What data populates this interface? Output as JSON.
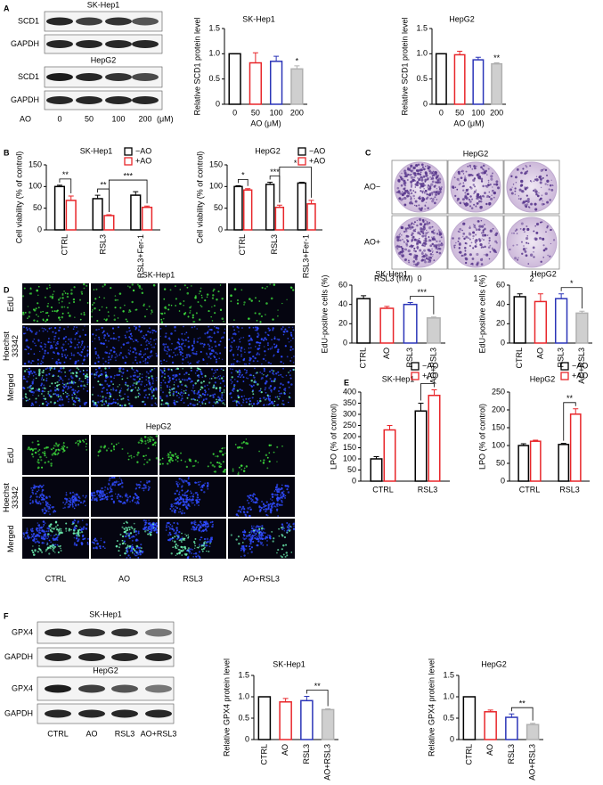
{
  "panel_labels": [
    "A",
    "B",
    "C",
    "D",
    "E",
    "F"
  ],
  "blots_a": {
    "cell_lines": [
      "SK-Hep1",
      "HepG2"
    ],
    "proteins": [
      "SCD1",
      "GAPDH"
    ],
    "lane_title": "AO",
    "lanes": [
      "0",
      "50",
      "100",
      "200"
    ],
    "unit": "(μM)"
  },
  "colony": {
    "title": "HepG2",
    "rows": [
      "AO−",
      "AO+"
    ],
    "lane_title": "RSL3 (nM)",
    "lanes": [
      "0",
      "1",
      "2"
    ]
  },
  "microscopy": {
    "cell_lines": [
      "SK-Hep1",
      "HepG2"
    ],
    "rows": [
      "EdU",
      "Hoechst 33342",
      "Merged"
    ],
    "columns": [
      "CTRL",
      "AO",
      "RSL3",
      "AO+RSL3"
    ]
  },
  "blots_f": {
    "cell_lines": [
      "SK-Hep1",
      "HepG2"
    ],
    "proteins": [
      "GPX4",
      "GAPDH"
    ],
    "lanes": [
      "CTRL",
      "AO",
      "RSL3",
      "AO+RSL3"
    ]
  },
  "chart_data": [
    {
      "type": "bar",
      "title": "SK-Hep1",
      "ylabel": "Relative SCD1 protein level",
      "xlabel": "AO (μM)",
      "categories": [
        "0",
        "50",
        "100",
        "200"
      ],
      "values": [
        1,
        0.82,
        0.85,
        0.7
      ],
      "errors": [
        0,
        0.2,
        0.1,
        0.06
      ],
      "colors": [
        "#000000",
        "#e8262a",
        "#2b35b8",
        "#b0b0b0"
      ],
      "fills": [
        "none",
        "none",
        "none",
        "#cfcfcf"
      ],
      "ylim": [
        0,
        1.5
      ],
      "yticks": [
        0,
        0.5,
        {
          "value": 1,
          "label": "1.0"
        },
        1.5
      ],
      "annotations": [
        {
          "text": "*",
          "between": [
            "200"
          ]
        }
      ]
    },
    {
      "type": "bar",
      "title": "HepG2",
      "ylabel": "Relative SCD1 protein level",
      "xlabel": "AO (μM)",
      "categories": [
        "0",
        "50",
        "100",
        "200"
      ],
      "values": [
        1,
        0.98,
        0.88,
        0.8
      ],
      "errors": [
        0,
        0.07,
        0.05,
        0.02
      ],
      "colors": [
        "#000000",
        "#e8262a",
        "#2b35b8",
        "#b0b0b0"
      ],
      "fills": [
        "none",
        "none",
        "none",
        "#cfcfcf"
      ],
      "ylim": [
        0,
        1.5
      ],
      "yticks": [
        0,
        0.5,
        {
          "value": 1,
          "label": "1.0"
        },
        1.5
      ],
      "annotations": [
        {
          "text": "**",
          "between": [
            "200"
          ]
        }
      ]
    },
    {
      "type": "grouped_bar",
      "title": "SK-Hep1",
      "ylabel": "Cell viability (% of control)",
      "categories": [
        "CTRL",
        "RSL3",
        "RSL3+Fer-1"
      ],
      "series": [
        {
          "name": "−AO",
          "color": "#000000",
          "values": [
            100,
            72,
            80
          ],
          "errors": [
            3,
            8,
            8
          ]
        },
        {
          "name": "+AO",
          "color": "#e8262a",
          "values": [
            68,
            33,
            52
          ],
          "errors": [
            10,
            2,
            3
          ]
        }
      ],
      "ylim": [
        0,
        150
      ],
      "yticks": [
        0,
        50,
        100,
        150
      ],
      "annotations": [
        {
          "text": "**",
          "between": [
            [
              "CTRL",
              "−AO"
            ],
            [
              "CTRL",
              "+AO"
            ]
          ]
        },
        {
          "text": "**",
          "between": [
            [
              "RSL3",
              "−AO"
            ],
            [
              "RSL3",
              "+AO"
            ]
          ]
        },
        {
          "text": "***",
          "between": [
            [
              "RSL3",
              "+AO"
            ],
            [
              "RSL3+Fer-1",
              "+AO"
            ]
          ]
        }
      ]
    },
    {
      "type": "grouped_bar",
      "title": "HepG2",
      "ylabel": "Cell viability (% of control)",
      "categories": [
        "CTRL",
        "RSL3",
        "RSL3+Fer-1"
      ],
      "series": [
        {
          "name": "−AO",
          "color": "#000000",
          "values": [
            100,
            105,
            108
          ],
          "errors": [
            2,
            5,
            2
          ]
        },
        {
          "name": "+AO",
          "color": "#e8262a",
          "values": [
            92,
            52,
            60
          ],
          "errors": [
            3,
            5,
            8
          ]
        }
      ],
      "ylim": [
        0,
        150
      ],
      "yticks": [
        0,
        50,
        100,
        150
      ],
      "annotations": [
        {
          "text": "*",
          "between": [
            [
              "CTRL",
              "−AO"
            ],
            [
              "CTRL",
              "+AO"
            ]
          ]
        },
        {
          "text": "***",
          "between": [
            [
              "RSL3",
              "−AO"
            ],
            [
              "RSL3",
              "+AO"
            ]
          ]
        },
        {
          "text": "*",
          "between": [
            [
              "RSL3",
              "+AO"
            ],
            [
              "RSL3+Fer-1",
              "+AO"
            ]
          ]
        }
      ]
    },
    {
      "type": "bar",
      "title": "SK-Hep1",
      "ylabel": "EdU-positive cells (%)",
      "categories": [
        "CTRL",
        "AO",
        "RSL3",
        "AO+RSL3"
      ],
      "values": [
        46,
        36,
        40,
        26
      ],
      "errors": [
        3,
        2,
        2,
        1
      ],
      "colors": [
        "#000000",
        "#e8262a",
        "#2b35b8",
        "#b0b0b0"
      ],
      "fills": [
        "none",
        "none",
        "none",
        "#cfcfcf"
      ],
      "ylim": [
        0,
        60
      ],
      "yticks": [
        0,
        20,
        40,
        60
      ],
      "annotations": [
        {
          "text": "***",
          "between": [
            "RSL3",
            "AO+RSL3"
          ]
        }
      ]
    },
    {
      "type": "bar",
      "title": "HepG2",
      "ylabel": "EdU-positive cells (%)",
      "categories": [
        "CTRL",
        "AO",
        "RSL3",
        "AO+RSL3"
      ],
      "values": [
        48,
        43,
        46,
        31
      ],
      "errors": [
        3,
        8,
        5,
        2
      ],
      "colors": [
        "#000000",
        "#e8262a",
        "#2b35b8",
        "#b0b0b0"
      ],
      "fills": [
        "none",
        "none",
        "none",
        "#cfcfcf"
      ],
      "ylim": [
        0,
        60
      ],
      "yticks": [
        0,
        20,
        40,
        60
      ],
      "annotations": [
        {
          "text": "*",
          "between": [
            "RSL3",
            "AO+RSL3"
          ]
        }
      ]
    },
    {
      "type": "grouped_bar",
      "title": "SK-Hep1",
      "ylabel": "LPO (% of control)",
      "categories": [
        "CTRL",
        "RSL3"
      ],
      "series": [
        {
          "name": "−AO",
          "color": "#000000",
          "values": [
            100,
            315
          ],
          "errors": [
            10,
            35
          ]
        },
        {
          "name": "+AO",
          "color": "#e8262a",
          "values": [
            230,
            385
          ],
          "errors": [
            20,
            25
          ]
        }
      ],
      "ylim": [
        0,
        400
      ],
      "yticks": [
        0,
        50,
        100,
        150,
        200,
        250,
        300,
        350,
        400
      ],
      "annotations": [
        {
          "text": "*",
          "between": [
            [
              "RSL3",
              "−AO"
            ],
            [
              "RSL3",
              "+AO"
            ]
          ]
        }
      ]
    },
    {
      "type": "grouped_bar",
      "title": "HepG2",
      "ylabel": "LPO (% of control)",
      "categories": [
        "CTRL",
        "RSL3"
      ],
      "series": [
        {
          "name": "−AO",
          "color": "#000000",
          "values": [
            100,
            103
          ],
          "errors": [
            5,
            3
          ]
        },
        {
          "name": "+AO",
          "color": "#e8262a",
          "values": [
            112,
            188
          ],
          "errors": [
            3,
            15
          ]
        }
      ],
      "ylim": [
        0,
        250
      ],
      "yticks": [
        0,
        50,
        100,
        150,
        200,
        250
      ],
      "annotations": [
        {
          "text": "**",
          "between": [
            [
              "RSL3",
              "−AO"
            ],
            [
              "RSL3",
              "+AO"
            ]
          ]
        }
      ]
    },
    {
      "type": "bar",
      "title": "SK-Hep1",
      "ylabel": "Relative GPX4 protein level",
      "categories": [
        "CTRL",
        "AO",
        "RSL3",
        "AO+RSL3"
      ],
      "values": [
        1,
        0.88,
        0.91,
        0.7
      ],
      "errors": [
        0,
        0.08,
        0.1,
        0.02
      ],
      "colors": [
        "#000000",
        "#e8262a",
        "#2b35b8",
        "#b0b0b0"
      ],
      "fills": [
        "none",
        "none",
        "none",
        "#cfcfcf"
      ],
      "ylim": [
        0,
        1.5
      ],
      "yticks": [
        0,
        0.5,
        {
          "value": 1,
          "label": "1.0"
        },
        1.5
      ],
      "annotations": [
        {
          "text": "**",
          "between": [
            "RSL3",
            "AO+RSL3"
          ]
        }
      ]
    },
    {
      "type": "bar",
      "title": "HepG2",
      "ylabel": "Relative GPX4 protein level",
      "categories": [
        "CTRL",
        "AO",
        "RSL3",
        "AO+RSL3"
      ],
      "values": [
        1,
        0.65,
        0.52,
        0.35
      ],
      "errors": [
        0,
        0.04,
        0.08,
        0.03
      ],
      "colors": [
        "#000000",
        "#e8262a",
        "#2b35b8",
        "#b0b0b0"
      ],
      "fills": [
        "none",
        "none",
        "none",
        "#cfcfcf"
      ],
      "ylim": [
        0,
        1.5
      ],
      "yticks": [
        0,
        0.5,
        {
          "value": 1,
          "label": "1.0"
        },
        1.5
      ],
      "annotations": [
        {
          "text": "**",
          "between": [
            "RSL3",
            "AO+RSL3"
          ]
        }
      ]
    }
  ]
}
